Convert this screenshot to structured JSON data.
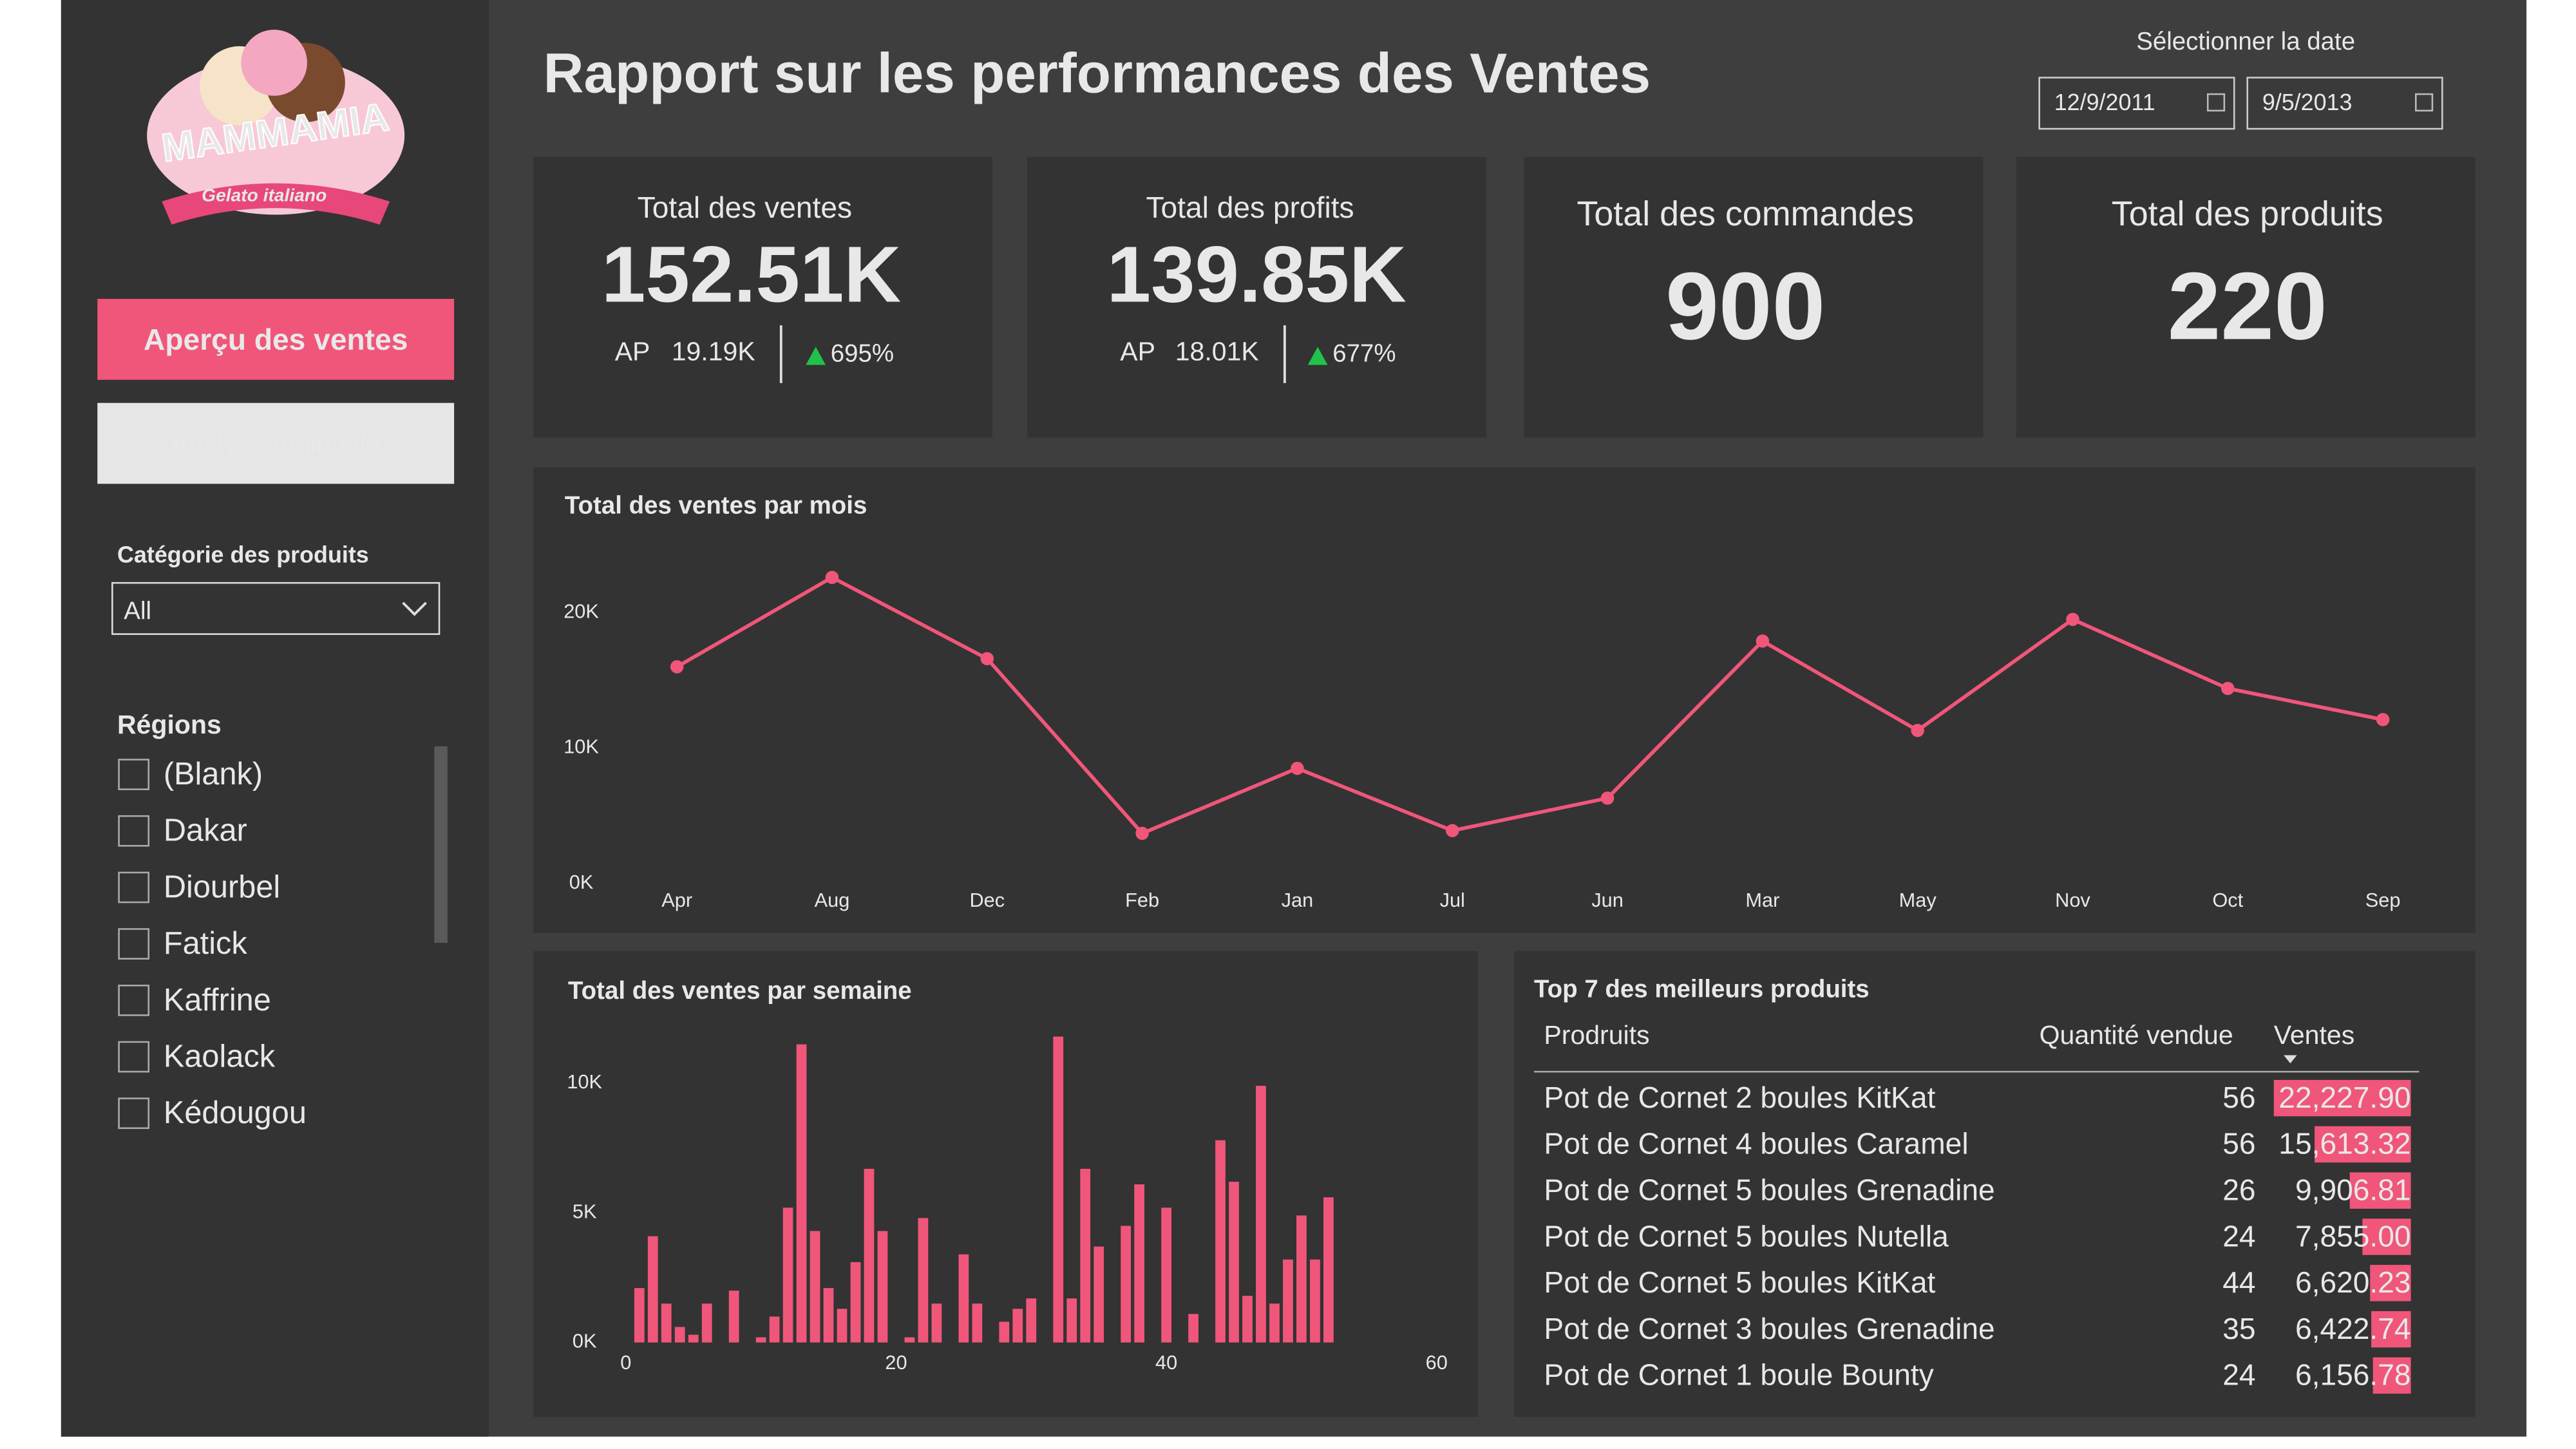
{
  "header": {
    "title": "Rapport sur les performances des Ventes",
    "date_label": "Sélectionner la date",
    "start_date": "12/9/2011",
    "end_date": "9/5/2013"
  },
  "logo": {
    "name": "MAMMAMIA",
    "tagline": "Gelato italiano"
  },
  "nav": [
    {
      "label": "Aperçu des ventes",
      "active": true
    },
    {
      "label": "Analyse régionale",
      "active": false
    }
  ],
  "category_filter": {
    "label": "Catégorie des produits",
    "value": "All"
  },
  "regions": {
    "label": "Régions",
    "items": [
      "(Blank)",
      "Dakar",
      "Diourbel",
      "Fatick",
      "Kaffrine",
      "Kaolack",
      "Kédougou"
    ]
  },
  "kpis": [
    {
      "title": "Total des ventes",
      "value": "152.51K",
      "prior_label": "AP",
      "prior": "19.19K",
      "change": "695%"
    },
    {
      "title": "Total des profits",
      "value": "139.85K",
      "prior_label": "AP",
      "prior": "18.01K",
      "change": "677%"
    },
    {
      "title": "Total des commandes",
      "value": 900
    },
    {
      "title": "Total des produits",
      "value": 220
    }
  ],
  "chart_data": [
    {
      "type": "line",
      "title": "Total des ventes par mois",
      "color": "#f0567a",
      "categories": [
        "Apr",
        "Aug",
        "Dec",
        "Feb",
        "Jan",
        "Jul",
        "Jun",
        "Mar",
        "May",
        "Nov",
        "Oct",
        "Sep"
      ],
      "values": [
        16000,
        22600,
        16600,
        3700,
        8500,
        3900,
        6300,
        17900,
        11300,
        19500,
        14400,
        12100
      ],
      "ylim": [
        0,
        25000
      ],
      "yticks": [
        {
          "value": 0,
          "label": "0K"
        },
        {
          "value": 10000,
          "label": "10K"
        },
        {
          "value": 20000,
          "label": "20K"
        }
      ]
    },
    {
      "type": "bar",
      "title": "Total des ventes par semaine",
      "color": "#f0567a",
      "x": [
        1,
        2,
        3,
        4,
        5,
        6,
        8,
        10,
        11,
        12,
        13,
        14,
        15,
        16,
        17,
        18,
        19,
        21,
        22,
        23,
        25,
        26,
        28,
        29,
        30,
        32,
        33,
        34,
        35,
        37,
        38,
        40,
        42,
        44,
        45,
        46,
        47,
        48,
        49,
        50,
        51,
        52
      ],
      "values": [
        2100,
        4100,
        1500,
        600,
        300,
        1500,
        2000,
        200,
        1000,
        5200,
        11500,
        4300,
        2100,
        1300,
        3100,
        6700,
        4300,
        200,
        4800,
        1500,
        3400,
        1500,
        800,
        1300,
        1700,
        11800,
        1700,
        6700,
        3700,
        4500,
        6100,
        5200,
        1100,
        7800,
        6200,
        1800,
        9900,
        1500,
        3200,
        4900,
        3200,
        5600
      ],
      "xlim": [
        0,
        60
      ],
      "xticks": [
        0,
        20,
        40,
        60
      ],
      "ylim": [
        0,
        12000
      ],
      "yticks": [
        {
          "value": 0,
          "label": "0K"
        },
        {
          "value": 5000,
          "label": "5K"
        },
        {
          "value": 10000,
          "label": "10K"
        }
      ]
    }
  ],
  "table": {
    "title": "Top 7 des meilleurs produits",
    "columns": [
      "Prodruits",
      "Quantité vendue",
      "Ventes"
    ],
    "rows": [
      {
        "product": "Pot de Cornet 2 boules KitKat",
        "quantity": 56,
        "sales": 22227.9,
        "sales_label": "22,227.90"
      },
      {
        "product": "Pot de Cornet 4 boules Caramel",
        "quantity": 56,
        "sales": 15613.32,
        "sales_label": "15,613.32"
      },
      {
        "product": "Pot de Cornet 5 boules Grenadine",
        "quantity": 26,
        "sales": 9906.81,
        "sales_label": "9,906.81"
      },
      {
        "product": "Pot de Cornet 5 boules Nutella",
        "quantity": 24,
        "sales": 7855.0,
        "sales_label": "7,855.00"
      },
      {
        "product": "Pot de Cornet 5 boules KitKat",
        "quantity": 44,
        "sales": 6620.23,
        "sales_label": "6,620.23"
      },
      {
        "product": "Pot de Cornet 3 boules Grenadine",
        "quantity": 35,
        "sales": 6422.74,
        "sales_label": "6,422.74"
      },
      {
        "product": "Pot de Cornet 1 boule Bounty",
        "quantity": 24,
        "sales": 6156.78,
        "sales_label": "6,156.78"
      }
    ]
  }
}
